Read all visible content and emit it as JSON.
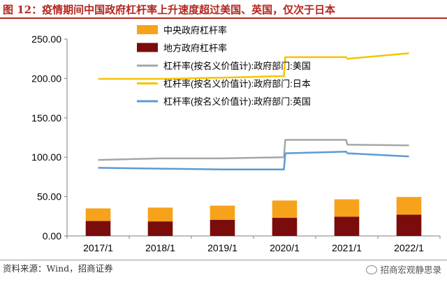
{
  "header": {
    "title": "图 12：疫情期间中国政府杠杆率上升速度超过美国、英国，仅次于日本"
  },
  "footer": {
    "source": "资料来源：Wind，招商证券",
    "watermark": "招商宏观静思录"
  },
  "colors": {
    "central": "#f7a21b",
    "local": "#7b0c0c",
    "us": "#a6a6a6",
    "jp": "#f5c400",
    "uk": "#5b9bd5",
    "accent": "#b3261e"
  },
  "chart_data": {
    "type": "bar+line",
    "ylim": [
      0,
      250
    ],
    "yticks": [
      "0.00",
      "50.00",
      "100.00",
      "150.00",
      "200.00",
      "250.00"
    ],
    "xticks": [
      "2017/1",
      "2018/1",
      "2019/1",
      "2020/1",
      "2021/1",
      "2022/1"
    ],
    "grid": false,
    "legend_position": "top-center",
    "bars": {
      "stacked": true,
      "x": [
        "2017/1",
        "2018/1",
        "2019/1",
        "2020/1",
        "2021/1",
        "2022/1"
      ],
      "series": [
        {
          "name": "地方政府杠杆率",
          "color_key": "local",
          "values": [
            19,
            18.5,
            20.5,
            23,
            24.5,
            27
          ]
        },
        {
          "name": "中央政府杠杆率",
          "color_key": "central",
          "values": [
            16,
            17.5,
            18,
            22,
            22,
            22.5
          ]
        }
      ]
    },
    "lines": [
      {
        "name": "杠杆率(按名义价值计):政府部门:美国",
        "color_key": "us",
        "points": [
          {
            "x": "2017/1",
            "y": 96.5
          },
          {
            "x": "2018/1",
            "y": 98.5
          },
          {
            "x": "2019/1",
            "y": 98.5
          },
          {
            "x": "2020/1",
            "y": 100
          },
          {
            "x": "2020/1",
            "y": 122
          },
          {
            "x": "2021/1",
            "y": 122
          },
          {
            "x": "2021/1",
            "y": 116
          },
          {
            "x": "2022/1",
            "y": 115
          }
        ]
      },
      {
        "name": "杠杆率(按名义价值计):政府部门:日本",
        "color_key": "jp",
        "points": [
          {
            "x": "2017/1",
            "y": 199.5
          },
          {
            "x": "2018/1",
            "y": 199.5
          },
          {
            "x": "2019/1",
            "y": 201
          },
          {
            "x": "2020/1",
            "y": 203
          },
          {
            "x": "2020/1",
            "y": 227
          },
          {
            "x": "2021/1",
            "y": 227
          },
          {
            "x": "2021/1",
            "y": 225
          },
          {
            "x": "2022/1",
            "y": 232
          }
        ]
      },
      {
        "name": "杠杆率(按名义价值计):政府部门:英国",
        "color_key": "uk",
        "points": [
          {
            "x": "2017/1",
            "y": 86.5
          },
          {
            "x": "2018/1",
            "y": 85.5
          },
          {
            "x": "2019/1",
            "y": 84.5
          },
          {
            "x": "2020/1",
            "y": 84.5
          },
          {
            "x": "2020/1",
            "y": 105
          },
          {
            "x": "2021/1",
            "y": 107
          },
          {
            "x": "2021/1",
            "y": 105
          },
          {
            "x": "2022/1",
            "y": 101
          }
        ]
      }
    ],
    "legend": [
      {
        "label": "中央政府杠杆率",
        "kind": "bar",
        "color_key": "central"
      },
      {
        "label": "地方政府杠杆率",
        "kind": "bar",
        "color_key": "local"
      },
      {
        "label": "杠杆率(按名义价值计):政府部门:美国",
        "kind": "line",
        "color_key": "us"
      },
      {
        "label": "杠杆率(按名义价值计):政府部门:日本",
        "kind": "line",
        "color_key": "jp"
      },
      {
        "label": "杠杆率(按名义价值计):政府部门:英国",
        "kind": "line",
        "color_key": "uk"
      }
    ]
  }
}
